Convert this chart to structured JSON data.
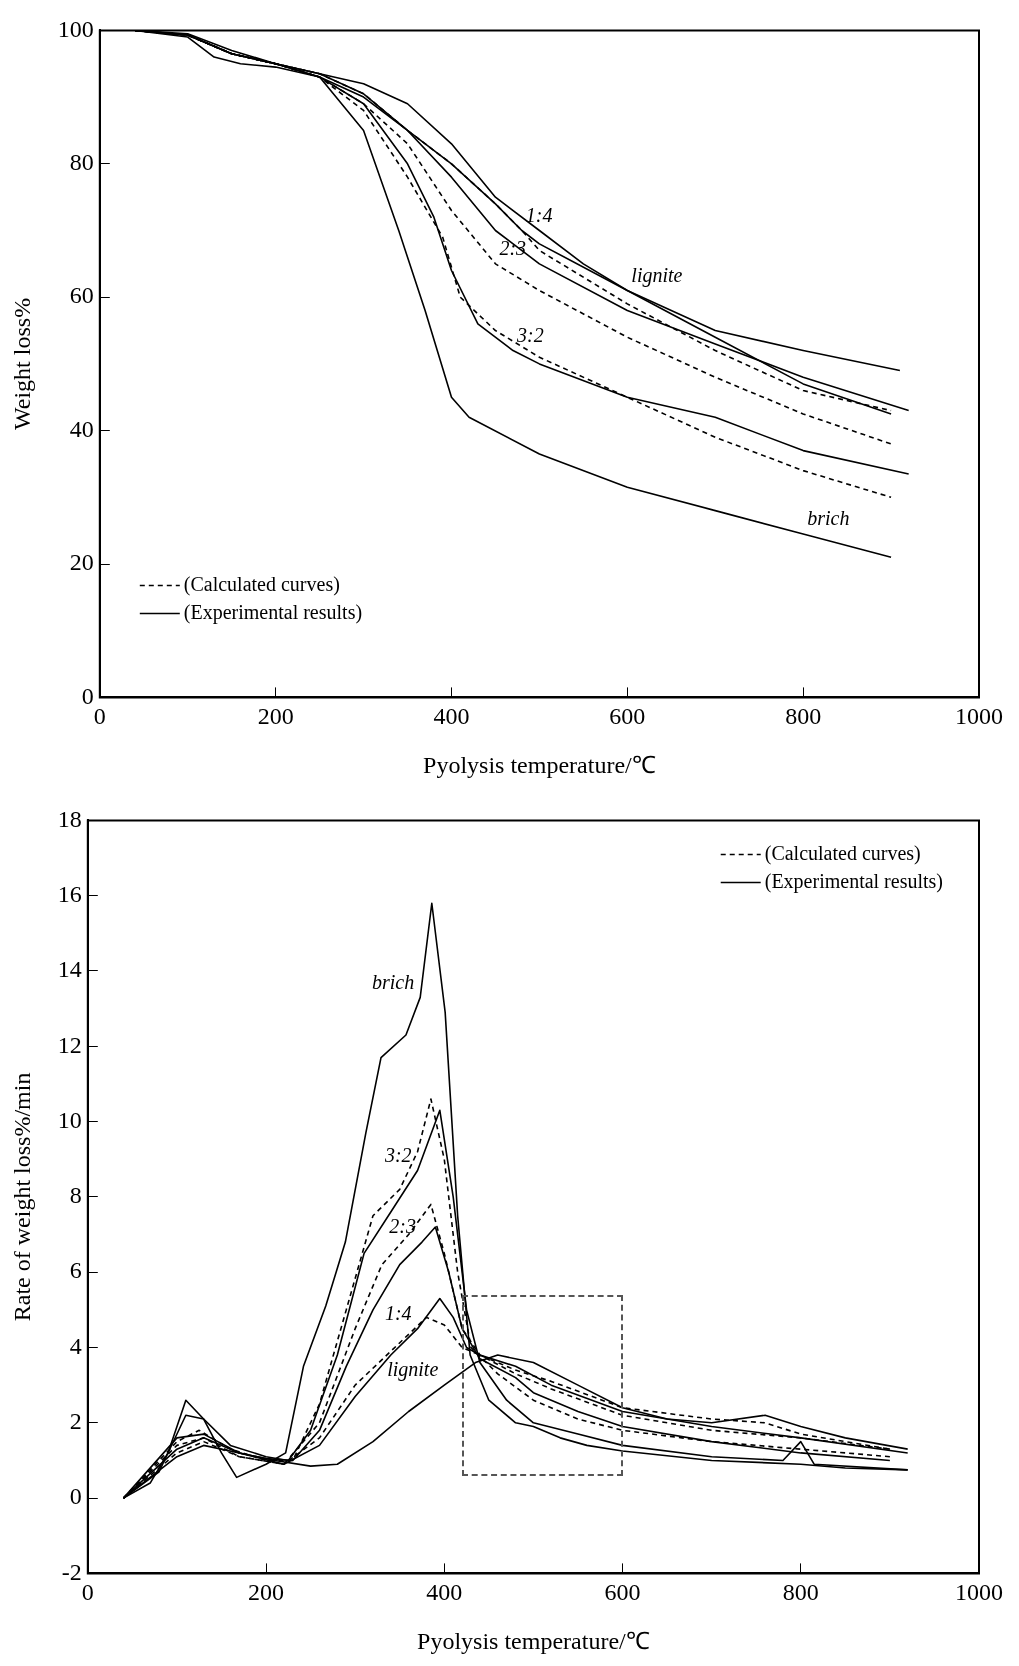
{
  "chart_data": [
    {
      "type": "line",
      "xlabel": "Pyolysis temperature/℃",
      "ylabel": "Weight loss%",
      "xlim": [
        0,
        1000
      ],
      "xticks": [
        0,
        200,
        400,
        600,
        800,
        1000
      ],
      "ylim": [
        0,
        100
      ],
      "yticks": [
        0,
        20,
        40,
        60,
        80,
        100
      ],
      "legend": "bottom left",
      "series": [
        {
          "name": "(Calculated curves)",
          "type": "line",
          "line_style": "dashed",
          "color": "#000000",
          "x": [
            40,
            100,
            150,
            200,
            250,
            300,
            350,
            400,
            450,
            480,
            500,
            600,
            700,
            800,
            900
          ],
          "values": [
            100,
            99.3,
            96.5,
            95,
            93.5,
            90.5,
            85,
            80,
            74,
            70,
            67,
            59,
            52,
            46,
            43
          ]
        },
        {
          "type": "line",
          "line_style": "dashed",
          "color": "#000000",
          "x": [
            40,
            100,
            150,
            200,
            250,
            300,
            350,
            400,
            450,
            500,
            600,
            700,
            800,
            900
          ],
          "values": [
            100,
            99.3,
            96.5,
            95,
            93,
            89,
            83,
            73,
            65,
            61,
            54,
            48,
            42.5,
            38
          ]
        },
        {
          "type": "line",
          "line_style": "dashed",
          "color": "#000000",
          "x": [
            40,
            100,
            150,
            200,
            250,
            300,
            350,
            390,
            410,
            450,
            500,
            600,
            700,
            800,
            900
          ],
          "values": [
            100,
            99.3,
            96.5,
            95,
            93,
            88,
            78,
            69,
            60,
            55,
            51,
            45,
            39,
            34,
            30
          ]
        },
        {
          "name": "(Experimental results)",
          "type": "line",
          "line_style": "solid",
          "color": "#000000",
          "x": [
            40,
            100,
            130,
            160,
            200,
            250,
            300,
            340,
            370,
            400,
            420,
            500,
            600,
            700,
            800,
            900
          ],
          "values": [
            100,
            99,
            96,
            95,
            94.5,
            93,
            85,
            70,
            58,
            45,
            42,
            36.5,
            31.5,
            28,
            24.5,
            21
          ]
        },
        {
          "type": "line",
          "line_style": "solid",
          "color": "#000000",
          "x": [
            40,
            100,
            150,
            200,
            250,
            300,
            350,
            380,
            400,
            430,
            470,
            500,
            600,
            700,
            800,
            920
          ],
          "values": [
            100,
            99.3,
            96.5,
            95,
            93,
            89,
            80,
            72,
            64,
            56,
            52,
            50,
            45,
            42,
            37,
            33.5
          ]
        },
        {
          "type": "line",
          "line_style": "solid",
          "color": "#000000",
          "x": [
            40,
            100,
            150,
            200,
            250,
            300,
            350,
            400,
            450,
            500,
            600,
            700,
            800,
            920
          ],
          "values": [
            100,
            99.3,
            96.5,
            95,
            93,
            90,
            85,
            78,
            70,
            65,
            58,
            53,
            48,
            43
          ]
        },
        {
          "type": "line",
          "line_style": "solid",
          "color": "#000000",
          "x": [
            40,
            100,
            150,
            200,
            250,
            300,
            350,
            400,
            450,
            480,
            500,
            600,
            700,
            800,
            910
          ],
          "values": [
            100,
            99.3,
            96.5,
            95,
            93.5,
            90.5,
            85,
            80,
            74,
            70,
            68,
            61,
            55,
            52,
            49
          ]
        },
        {
          "type": "line",
          "line_style": "solid",
          "color": "#000000",
          "x": [
            40,
            100,
            150,
            200,
            250,
            300,
            350,
            400,
            450,
            500,
            550,
            600,
            700,
            800,
            900
          ],
          "values": [
            100,
            99.5,
            97,
            95,
            93.5,
            92,
            89,
            83,
            75,
            70,
            65,
            61,
            54,
            47,
            42.5
          ]
        }
      ],
      "annotations": [
        {
          "text": "lignite",
          "x": 600,
          "y": 61
        },
        {
          "text": "1:4",
          "x": 480,
          "y": 70
        },
        {
          "text": "2:3",
          "x": 450,
          "y": 65
        },
        {
          "text": "3:2",
          "x": 470,
          "y": 52
        },
        {
          "text": "brich",
          "x": 800,
          "y": 24.5
        }
      ]
    },
    {
      "type": "line",
      "xlabel": "Pyolysis temperature/℃",
      "ylabel": "Rate of weight loss%/min",
      "xlim": [
        0,
        1000
      ],
      "xticks": [
        0,
        200,
        400,
        600,
        800,
        1000
      ],
      "ylim": [
        -2,
        18
      ],
      "yticks": [
        -2,
        0,
        2,
        4,
        6,
        8,
        10,
        12,
        14,
        16,
        18
      ],
      "legend": "top right",
      "series": [
        {
          "name": "(Calculated curves)",
          "type": "line",
          "line_style": "dashed",
          "color": "#000000",
          "x": [
            40,
            100,
            125,
            160,
            200,
            230,
            260,
            290,
            320,
            350,
            370,
            385,
            400,
            415,
            430,
            460,
            500,
            550,
            600,
            700,
            800,
            900
          ],
          "values": [
            0,
            1.5,
            1.8,
            1.3,
            1.0,
            1.0,
            2.5,
            5,
            7.5,
            8.2,
            9.2,
            10.6,
            9,
            6,
            4,
            3.3,
            2.6,
            2.1,
            1.8,
            1.5,
            1.3,
            1.1
          ]
        },
        {
          "type": "line",
          "line_style": "dashed",
          "color": "#000000",
          "x": [
            40,
            100,
            130,
            170,
            220,
            260,
            300,
            330,
            360,
            385,
            400,
            420,
            440,
            480,
            520,
            600,
            700,
            800,
            900
          ],
          "values": [
            0,
            1.4,
            1.6,
            1.1,
            0.9,
            2.0,
            4.5,
            6.2,
            7,
            7.8,
            6.5,
            4.5,
            3.8,
            3.3,
            2.9,
            2.2,
            1.8,
            1.6,
            1.3
          ]
        },
        {
          "type": "line",
          "line_style": "dashed",
          "color": "#000000",
          "x": [
            40,
            100,
            130,
            170,
            220,
            260,
            300,
            340,
            380,
            400,
            420,
            440,
            480,
            520,
            600,
            700,
            760,
            800,
            900
          ],
          "values": [
            0,
            1.2,
            1.5,
            1.1,
            0.9,
            1.6,
            3.0,
            3.9,
            4.8,
            4.6,
            4.0,
            3.8,
            3.4,
            3.1,
            2.4,
            2.1,
            2.0,
            1.7,
            1.3
          ]
        },
        {
          "name": "(Experimental results)",
          "type": "line",
          "line_style": "solid",
          "color": "#000000",
          "x": [
            40,
            70,
            90,
            110,
            130,
            150,
            167,
            200,
            222,
            242,
            267,
            289,
            312,
            329,
            357,
            373,
            386,
            401,
            415,
            429,
            450,
            480,
            500,
            530,
            560,
            600,
            700,
            800,
            850,
            920
          ],
          "values": [
            0,
            0.4,
            1.2,
            2.6,
            2.1,
            1.2,
            0.55,
            0.9,
            1.2,
            3.5,
            5.1,
            6.8,
            9.7,
            11.7,
            12.3,
            13.3,
            15.8,
            12.9,
            7.5,
            3.8,
            2.6,
            2.0,
            1.9,
            1.6,
            1.4,
            1.25,
            1.0,
            0.9,
            0.8,
            0.75
          ]
        },
        {
          "type": "line",
          "line_style": "solid",
          "color": "#000000",
          "x": [
            40,
            80,
            110,
            130,
            160,
            200,
            225,
            250,
            280,
            310,
            340,
            370,
            395,
            410,
            425,
            440,
            470,
            500,
            550,
            600,
            700,
            780,
            800,
            815,
            920
          ],
          "values": [
            0,
            0.7,
            2.2,
            2.1,
            1.4,
            1.1,
            1.0,
            1.8,
            3.8,
            6.5,
            7.6,
            8.7,
            10.3,
            8,
            5,
            3.6,
            2.6,
            2.0,
            1.7,
            1.4,
            1.1,
            1.0,
            1.5,
            0.9,
            0.75
          ]
        },
        {
          "type": "line",
          "line_style": "solid",
          "color": "#000000",
          "x": [
            40,
            100,
            130,
            170,
            200,
            230,
            260,
            290,
            320,
            350,
            375,
            390,
            405,
            420,
            440,
            480,
            500,
            550,
            600,
            700,
            800,
            900
          ],
          "values": [
            0,
            1.6,
            1.7,
            1.2,
            1.05,
            1.0,
            1.8,
            3.5,
            5,
            6.2,
            6.8,
            7.2,
            6,
            4.5,
            3.7,
            3.2,
            2.8,
            2.3,
            1.9,
            1.5,
            1.2,
            1.0
          ]
        },
        {
          "type": "line",
          "line_style": "solid",
          "color": "#000000",
          "x": [
            40,
            100,
            130,
            170,
            220,
            260,
            300,
            340,
            370,
            395,
            410,
            425,
            440,
            480,
            520,
            600,
            700,
            800,
            920
          ],
          "values": [
            0,
            1.3,
            1.6,
            1.2,
            0.9,
            1.4,
            2.7,
            3.8,
            4.5,
            5.3,
            4.8,
            4.0,
            3.8,
            3.5,
            3.0,
            2.3,
            1.9,
            1.6,
            1.2
          ]
        },
        {
          "type": "line",
          "line_style": "solid",
          "color": "#000000",
          "x": [
            40,
            100,
            130,
            170,
            210,
            250,
            280,
            320,
            360,
            400,
            435,
            460,
            500,
            550,
            600,
            650,
            700,
            760,
            800,
            850,
            920
          ],
          "values": [
            0,
            1.1,
            1.4,
            1.2,
            1.0,
            0.85,
            0.9,
            1.5,
            2.3,
            3.0,
            3.6,
            3.8,
            3.6,
            3.0,
            2.4,
            2.1,
            2.0,
            2.2,
            1.9,
            1.6,
            1.3
          ]
        }
      ],
      "annotations": [
        {
          "text": "brich",
          "x": 373,
          "y": 13.3
        },
        {
          "text": "3:2",
          "x": 370,
          "y": 8.7
        },
        {
          "text": "2:3",
          "x": 375,
          "y": 6.8
        },
        {
          "text": "1:4",
          "x": 370,
          "y": 4.5
        },
        {
          "text": "lignite",
          "x": 400,
          "y": 3.0
        }
      ]
    }
  ]
}
